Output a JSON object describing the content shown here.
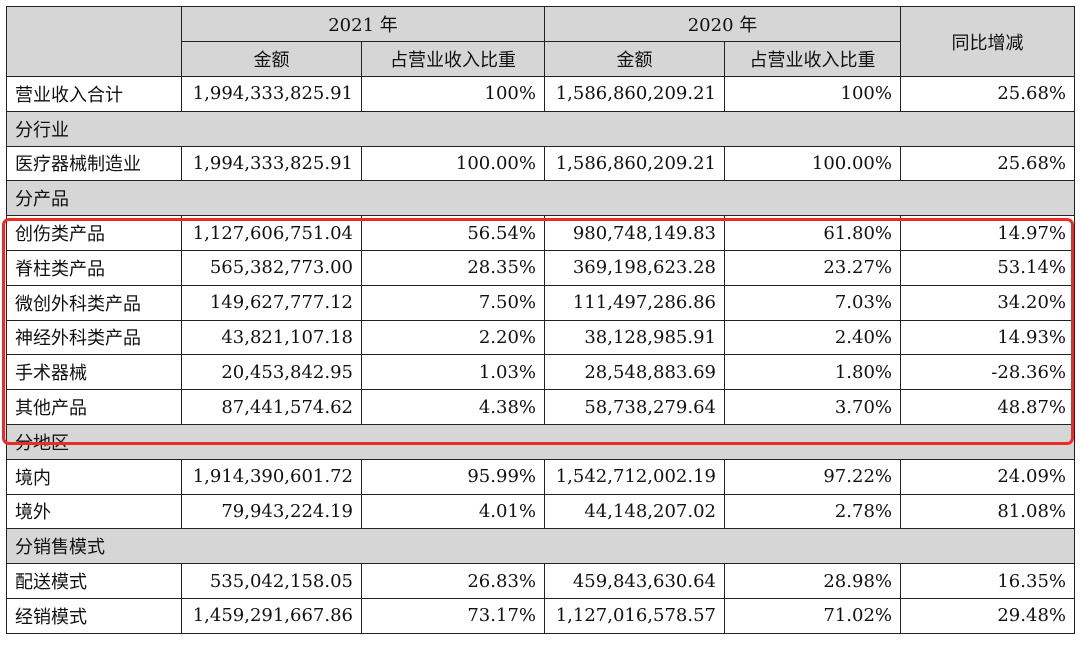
{
  "headers": {
    "year_2021": "2021 年",
    "year_2020": "2020 年",
    "yoy": "同比增减",
    "amount": "金额",
    "share": "占营业收入比重"
  },
  "rows": [
    {
      "kind": "data",
      "label": "营业收入合计",
      "a21": "1,994,333,825.91",
      "s21": "100%",
      "a20": "1,586,860,209.21",
      "s20": "100%",
      "yoy": "25.68%"
    },
    {
      "kind": "section",
      "label": "分行业"
    },
    {
      "kind": "data",
      "label": "医疗器械制造业",
      "a21": "1,994,333,825.91",
      "s21": "100.00%",
      "a20": "1,586,860,209.21",
      "s20": "100.00%",
      "yoy": "25.68%"
    },
    {
      "kind": "section",
      "label": "分产品"
    },
    {
      "kind": "data",
      "label": "创伤类产品",
      "a21": "1,127,606,751.04",
      "s21": "56.54%",
      "a20": "980,748,149.83",
      "s20": "61.80%",
      "yoy": "14.97%"
    },
    {
      "kind": "data",
      "label": "脊柱类产品",
      "a21": "565,382,773.00",
      "s21": "28.35%",
      "a20": "369,198,623.28",
      "s20": "23.27%",
      "yoy": "53.14%"
    },
    {
      "kind": "data",
      "label": "微创外科类产品",
      "a21": "149,627,777.12",
      "s21": "7.50%",
      "a20": "111,497,286.86",
      "s20": "7.03%",
      "yoy": "34.20%"
    },
    {
      "kind": "data",
      "label": "神经外科类产品",
      "a21": "43,821,107.18",
      "s21": "2.20%",
      "a20": "38,128,985.91",
      "s20": "2.40%",
      "yoy": "14.93%"
    },
    {
      "kind": "data",
      "label": "手术器械",
      "a21": "20,453,842.95",
      "s21": "1.03%",
      "a20": "28,548,883.69",
      "s20": "1.80%",
      "yoy": "-28.36%"
    },
    {
      "kind": "data",
      "label": "其他产品",
      "a21": "87,441,574.62",
      "s21": "4.38%",
      "a20": "58,738,279.64",
      "s20": "3.70%",
      "yoy": "48.87%"
    },
    {
      "kind": "section",
      "label": "分地区"
    },
    {
      "kind": "data",
      "label": "境内",
      "a21": "1,914,390,601.72",
      "s21": "95.99%",
      "a20": "1,542,712,002.19",
      "s20": "97.22%",
      "yoy": "24.09%"
    },
    {
      "kind": "data",
      "label": "境外",
      "a21": "79,943,224.19",
      "s21": "4.01%",
      "a20": "44,148,207.02",
      "s20": "2.78%",
      "yoy": "81.08%"
    },
    {
      "kind": "section",
      "label": "分销售模式"
    },
    {
      "kind": "data",
      "label": "配送模式",
      "a21": "535,042,158.05",
      "s21": "26.83%",
      "a20": "459,843,630.64",
      "s20": "28.98%",
      "yoy": "16.35%"
    },
    {
      "kind": "data",
      "label": "经销模式",
      "a21": "1,459,291,667.86",
      "s21": "73.17%",
      "a20": "1,127,016,578.57",
      "s20": "71.02%",
      "yoy": "29.48%"
    }
  ],
  "colors": {
    "header_bg": "#d6d6d6",
    "highlight": "#ee2a24"
  }
}
